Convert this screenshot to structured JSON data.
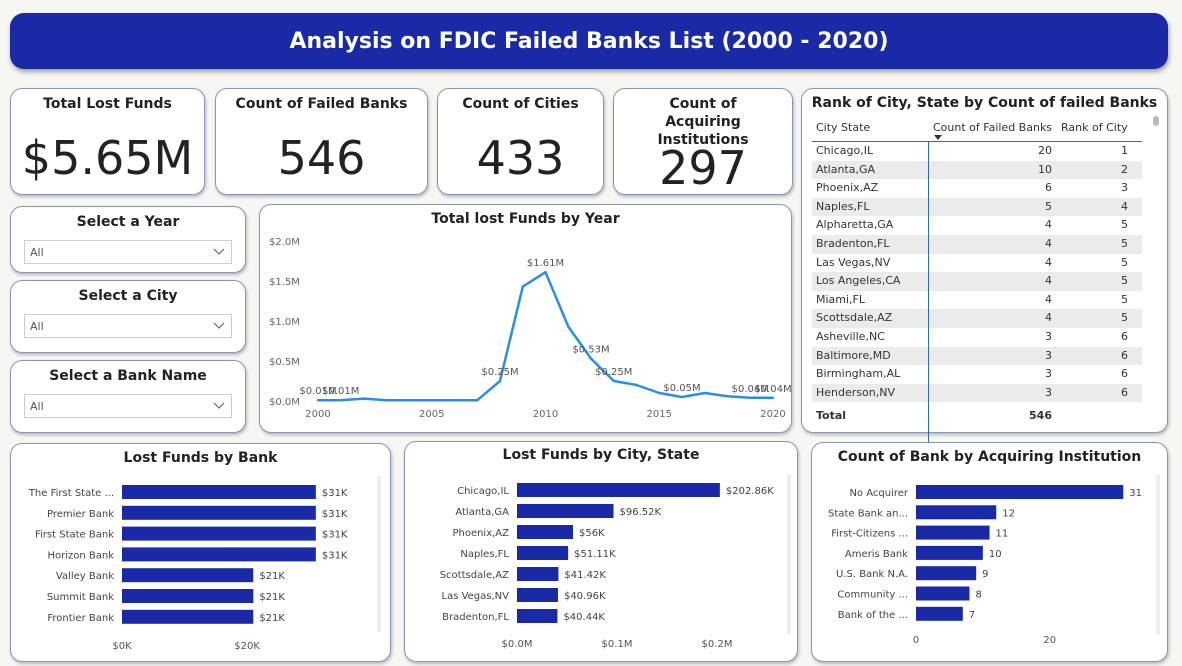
{
  "title": "Analysis on FDIC Failed Banks List (2000 - 2020)",
  "kpis": {
    "total_lost_funds": {
      "label": "Total Lost Funds",
      "value": "$5.65M"
    },
    "failed_banks": {
      "label": "Count of Failed Banks",
      "value": "546"
    },
    "cities": {
      "label": "Count of Cities",
      "value": "433"
    },
    "acquiring": {
      "label": "Count of Acquiring Institutions",
      "value": "297"
    }
  },
  "slicers": {
    "year": {
      "label": "Select a Year",
      "value": "All"
    },
    "city": {
      "label": "Select a City",
      "value": "All"
    },
    "bank": {
      "label": "Select a Bank Name",
      "value": "All"
    }
  },
  "rank_table": {
    "title": "Rank of City, State by Count of failed Banks",
    "headers": [
      "City State",
      "Count of Failed Banks",
      "Rank of City"
    ],
    "rows": [
      [
        "Chicago,IL",
        "20",
        "1"
      ],
      [
        "Atlanta,GA",
        "10",
        "2"
      ],
      [
        "Phoenix,AZ",
        "6",
        "3"
      ],
      [
        "Naples,FL",
        "5",
        "4"
      ],
      [
        "Alpharetta,GA",
        "4",
        "5"
      ],
      [
        "Bradenton,FL",
        "4",
        "5"
      ],
      [
        "Las Vegas,NV",
        "4",
        "5"
      ],
      [
        "Los Angeles,CA",
        "4",
        "5"
      ],
      [
        "Miami,FL",
        "4",
        "5"
      ],
      [
        "Scottsdale,AZ",
        "4",
        "5"
      ],
      [
        "Asheville,NC",
        "3",
        "6"
      ],
      [
        "Baltimore,MD",
        "3",
        "6"
      ],
      [
        "Birmingham,AL",
        "3",
        "6"
      ],
      [
        "Henderson,NV",
        "3",
        "6"
      ]
    ],
    "total_label": "Total",
    "total_value": "546"
  },
  "colors": {
    "accent": "#1a2aa6",
    "line": "#2b8ee6"
  },
  "chart_data": [
    {
      "id": "lost_by_year",
      "type": "line",
      "title": "Total lost Funds by Year",
      "x": [
        2000,
        2001,
        2002,
        2003,
        2004,
        2005,
        2006,
        2007,
        2008,
        2009,
        2010,
        2011,
        2012,
        2013,
        2014,
        2015,
        2016,
        2017,
        2018,
        2019,
        2020
      ],
      "values": [
        0.01,
        0.01,
        0.03,
        0.01,
        0.01,
        0.01,
        0.01,
        0.01,
        0.25,
        1.43,
        1.61,
        0.93,
        0.53,
        0.25,
        0.2,
        0.1,
        0.05,
        0.1,
        0.06,
        0.04,
        0.04
      ],
      "value_labels": [
        "$0.01M",
        "$0.01M",
        "",
        "",
        "",
        "",
        "",
        "",
        "$0.25M",
        "",
        "$1.61M",
        "",
        "$0.53M",
        "$0.25M",
        "",
        "",
        "$0.05M",
        "",
        "",
        "$0.04M",
        "$0.04M"
      ],
      "ytick_labels": [
        "$0.0M",
        "$0.5M",
        "$1.0M",
        "$1.5M",
        "$2.0M"
      ],
      "xtick_labels": [
        "2000",
        "2005",
        "2010",
        "2015",
        "2020"
      ],
      "ylim": [
        0,
        2.0
      ],
      "grid": false
    },
    {
      "id": "lost_by_bank",
      "type": "bar",
      "orientation": "horizontal",
      "title": "Lost Funds by Bank",
      "categories": [
        "The First State ...",
        "Premier Bank",
        "First State Bank",
        "Horizon Bank",
        "Valley Bank",
        "Summit Bank",
        "Frontier Bank"
      ],
      "values": [
        31,
        31,
        31,
        31,
        21,
        21,
        21
      ],
      "value_labels": [
        "$31K",
        "$31K",
        "$31K",
        "$31K",
        "$21K",
        "$21K",
        "$21K"
      ],
      "xtick_labels": [
        "$0K",
        "$20K"
      ],
      "xlim": [
        0,
        40.3
      ]
    },
    {
      "id": "lost_by_city",
      "type": "bar",
      "orientation": "horizontal",
      "title": "Lost Funds by City, State",
      "categories": [
        "Chicago,IL",
        "Atlanta,GA",
        "Phoenix,AZ",
        "Naples,FL",
        "Scottsdale,AZ",
        "Las Vegas,NV",
        "Bradenton,FL"
      ],
      "values": [
        202.86,
        96.52,
        56,
        51.11,
        41.42,
        40.96,
        40.44
      ],
      "value_labels": [
        "$202.86K",
        "$96.52K",
        "$56K",
        "$51.11K",
        "$41.42K",
        "$40.96K",
        "$40.44K"
      ],
      "xtick_labels": [
        "$0.0M",
        "$0.1M",
        "$0.2M"
      ],
      "xlim": [
        0,
        280
      ]
    },
    {
      "id": "banks_by_acquirer",
      "type": "bar",
      "orientation": "horizontal",
      "title": "Count of Bank by Acquiring Institution",
      "categories": [
        "No Acquirer",
        "State Bank an...",
        "First-Citizens ...",
        "Ameris Bank",
        "U.S. Bank N.A.",
        "Community ...",
        "Bank of the ..."
      ],
      "values": [
        31,
        12,
        11,
        10,
        9,
        8,
        7
      ],
      "value_labels": [
        "31",
        "12",
        "11",
        "10",
        "9",
        "8",
        "7"
      ],
      "xtick_labels": [
        "0",
        "20"
      ],
      "xlim": [
        0,
        33.5
      ]
    }
  ]
}
